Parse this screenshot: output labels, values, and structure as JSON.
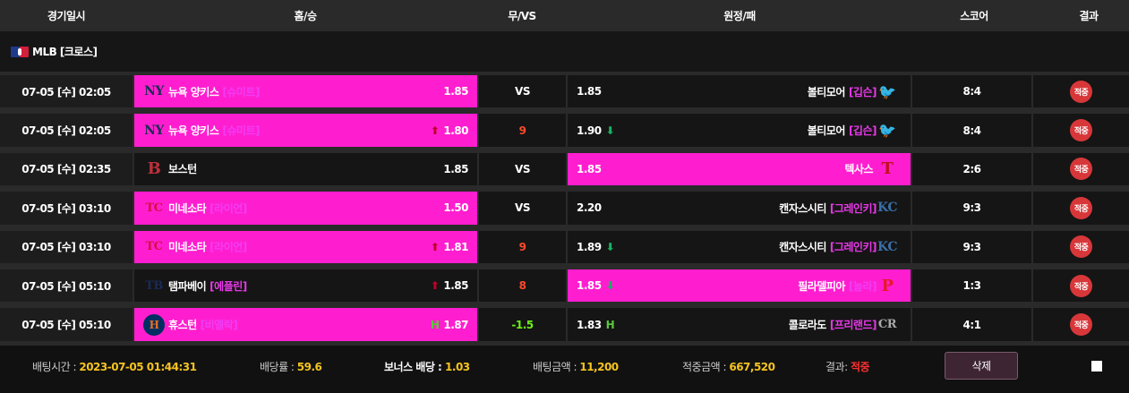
{
  "headers": [
    "경기일시",
    "홈/승",
    "무/VS",
    "원정/패",
    "스코어",
    "결과"
  ],
  "league": {
    "icon": "mlb-flag-icon",
    "label": "MLB [크로스]"
  },
  "colors": {
    "selected": "#ff1ecf",
    "result_badge": "#d8373a",
    "up": "#c0002a",
    "down": "#18b060"
  },
  "rows": [
    {
      "date": "07-05 [수] 02:05",
      "home": {
        "logo": "NY",
        "name": "뉴욕 양키스",
        "pitcher": "[슈미트]",
        "odds": "1.85",
        "trend": "",
        "selected": true
      },
      "mid": "VS",
      "mid_color": "",
      "away": {
        "logo": "🐦",
        "name": "볼티모어",
        "pitcher": "[깁슨]",
        "odds": "1.85",
        "trend": "",
        "selected": false
      },
      "score": "8:4",
      "result": "적중"
    },
    {
      "date": "07-05 [수] 02:05",
      "home": {
        "logo": "NY",
        "name": "뉴욕 양키스",
        "pitcher": "[슈미트]",
        "odds": "1.80",
        "trend": "up",
        "selected": true
      },
      "mid": "9",
      "mid_color": "red",
      "away": {
        "logo": "🐦",
        "name": "볼티모어",
        "pitcher": "[깁슨]",
        "odds": "1.90",
        "trend": "down",
        "selected": false
      },
      "score": "8:4",
      "result": "적중"
    },
    {
      "date": "07-05 [수] 02:35",
      "home": {
        "logo": "B",
        "name": "보스턴",
        "pitcher": "",
        "odds": "1.85",
        "trend": "",
        "selected": false
      },
      "mid": "VS",
      "mid_color": "",
      "away": {
        "logo": "T",
        "name": "텍사스",
        "pitcher": "",
        "odds": "1.85",
        "trend": "",
        "selected": true
      },
      "score": "2:6",
      "result": "적중"
    },
    {
      "date": "07-05 [수] 03:10",
      "home": {
        "logo": "TC",
        "name": "미네소타",
        "pitcher": "[라이언]",
        "odds": "1.50",
        "trend": "",
        "selected": true
      },
      "mid": "VS",
      "mid_color": "",
      "away": {
        "logo": "KC",
        "name": "캔자스시티",
        "pitcher": "[그레인키]",
        "odds": "2.20",
        "trend": "",
        "selected": false
      },
      "score": "9:3",
      "result": "적중"
    },
    {
      "date": "07-05 [수] 03:10",
      "home": {
        "logo": "TC",
        "name": "미네소타",
        "pitcher": "[라이언]",
        "odds": "1.81",
        "trend": "up",
        "selected": true
      },
      "mid": "9",
      "mid_color": "red",
      "away": {
        "logo": "KC",
        "name": "캔자스시티",
        "pitcher": "[그레인키]",
        "odds": "1.89",
        "trend": "down",
        "selected": false
      },
      "score": "9:3",
      "result": "적중"
    },
    {
      "date": "07-05 [수] 05:10",
      "home": {
        "logo": "TB",
        "name": "탬파베이",
        "pitcher": "[에플린]",
        "odds": "1.85",
        "trend": "up",
        "selected": false
      },
      "mid": "8",
      "mid_color": "red",
      "away": {
        "logo": "P",
        "name": "필라델피아",
        "pitcher": "[놀라]",
        "odds": "1.85",
        "trend": "down",
        "selected": true
      },
      "score": "1:3",
      "result": "적중"
    },
    {
      "date": "07-05 [수] 05:10",
      "home": {
        "logo": "H",
        "name": "휴스턴",
        "pitcher": "[비엘락]",
        "odds": "1.87",
        "trend": "h",
        "selected": true
      },
      "mid": "-1.5",
      "mid_color": "green",
      "away": {
        "logo": "CR",
        "name": "콜로라도",
        "pitcher": "[프리랜드]",
        "odds": "1.83",
        "trend": "h",
        "selected": false
      },
      "score": "4:1",
      "result": "적중"
    }
  ],
  "footer": {
    "bet_time_label": "배팅시간 : ",
    "bet_time": "2023-07-05 01:44:31",
    "rate_label": "배당률 : ",
    "rate": "59.6",
    "bonus_label": "보너스 배당 : ",
    "bonus": "1.03",
    "amount_label": "배팅금액 : ",
    "amount": "11,200",
    "win_label": "적중금액 : ",
    "win": "667,520",
    "result_label": "결과: ",
    "result": "적중",
    "delete_label": "삭제"
  }
}
